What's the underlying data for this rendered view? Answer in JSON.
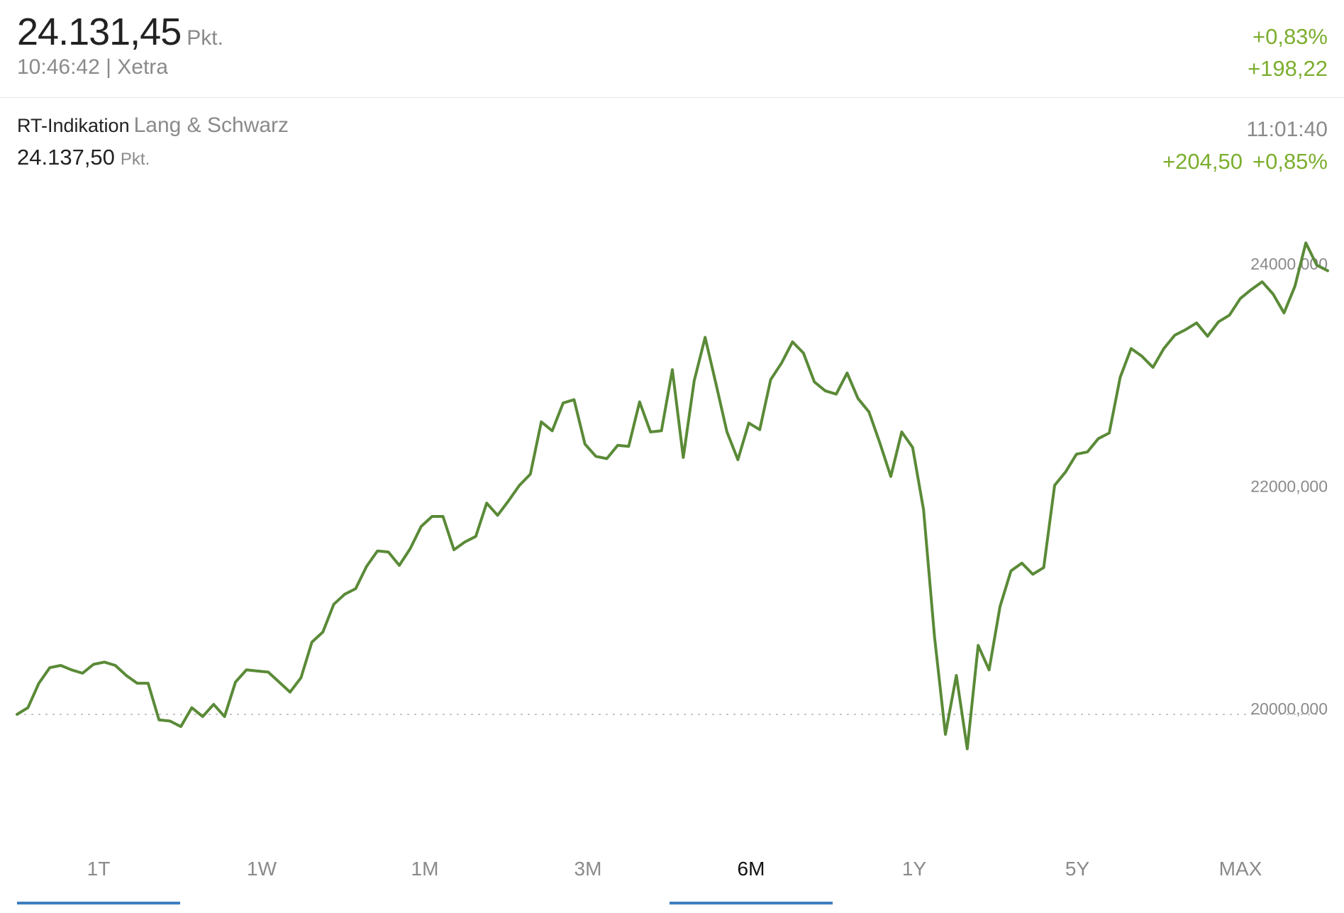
{
  "quote": {
    "price": "24.131,45",
    "unit": "Pkt.",
    "time": "10:46:42",
    "exchange": "Xetra",
    "change_pct": "+0,83%",
    "change_abs": "+198,22"
  },
  "rt_indication": {
    "label": "RT-Indikation",
    "source": "Lang & Schwarz",
    "price": "24.137,50",
    "unit": "Pkt.",
    "time": "11:01:40",
    "change_abs": "+204,50",
    "change_pct": "+0,85%"
  },
  "colors": {
    "positive": "#7cae2f",
    "line": "#5a8a37",
    "tab_underline": "#3d7fc1"
  },
  "tabs": [
    {
      "label": "1T",
      "underlined": true,
      "active": false
    },
    {
      "label": "1W",
      "underlined": false,
      "active": false
    },
    {
      "label": "1M",
      "underlined": false,
      "active": false
    },
    {
      "label": "3M",
      "underlined": false,
      "active": false
    },
    {
      "label": "6M",
      "underlined": true,
      "active": true
    },
    {
      "label": "1Y",
      "underlined": false,
      "active": false
    },
    {
      "label": "5Y",
      "underlined": false,
      "active": false
    },
    {
      "label": "MAX",
      "underlined": false,
      "active": false
    }
  ],
  "chart_data": {
    "type": "line",
    "y_tick_labels": [
      "24000,000",
      "22000,000",
      "20000,000"
    ],
    "y_ticks": [
      24000,
      22000,
      20000
    ],
    "reference_value": 20000,
    "ylim": [
      18000,
      24500
    ],
    "grid": false,
    "series": [
      {
        "values": [
          20000,
          20060,
          20280,
          20420,
          20440,
          20400,
          20370,
          20450,
          20470,
          20440,
          20350,
          20280,
          20280,
          19950,
          19940,
          19890,
          20060,
          19980,
          20090,
          19980,
          20290,
          20400,
          20390,
          20380,
          20290,
          20200,
          20330,
          20650,
          20740,
          20990,
          21080,
          21130,
          21330,
          21470,
          21460,
          21340,
          21490,
          21690,
          21780,
          21780,
          21480,
          21550,
          21600,
          21900,
          21790,
          21920,
          22060,
          22160,
          22630,
          22550,
          22800,
          22830,
          22430,
          22320,
          22300,
          22420,
          22410,
          22810,
          22540,
          22550,
          23100,
          22310,
          23000,
          23390,
          22970,
          22540,
          22290,
          22620,
          22560,
          23010,
          23160,
          23350,
          23250,
          22990,
          22910,
          22880,
          23070,
          22840,
          22720,
          22440,
          22140,
          22540,
          22400,
          21840,
          20700,
          19820,
          20350,
          19690,
          20620,
          20400,
          20970,
          21290,
          21360,
          21260,
          21320,
          22060,
          22180,
          22340,
          22360,
          22480,
          22530,
          23030,
          23290,
          23220,
          23120,
          23290,
          23410,
          23460,
          23520,
          23400,
          23530,
          23590,
          23740,
          23820,
          23890,
          23780,
          23610,
          23850,
          24240,
          24040,
          23990
        ],
        "color": "#5a8a37"
      }
    ]
  }
}
